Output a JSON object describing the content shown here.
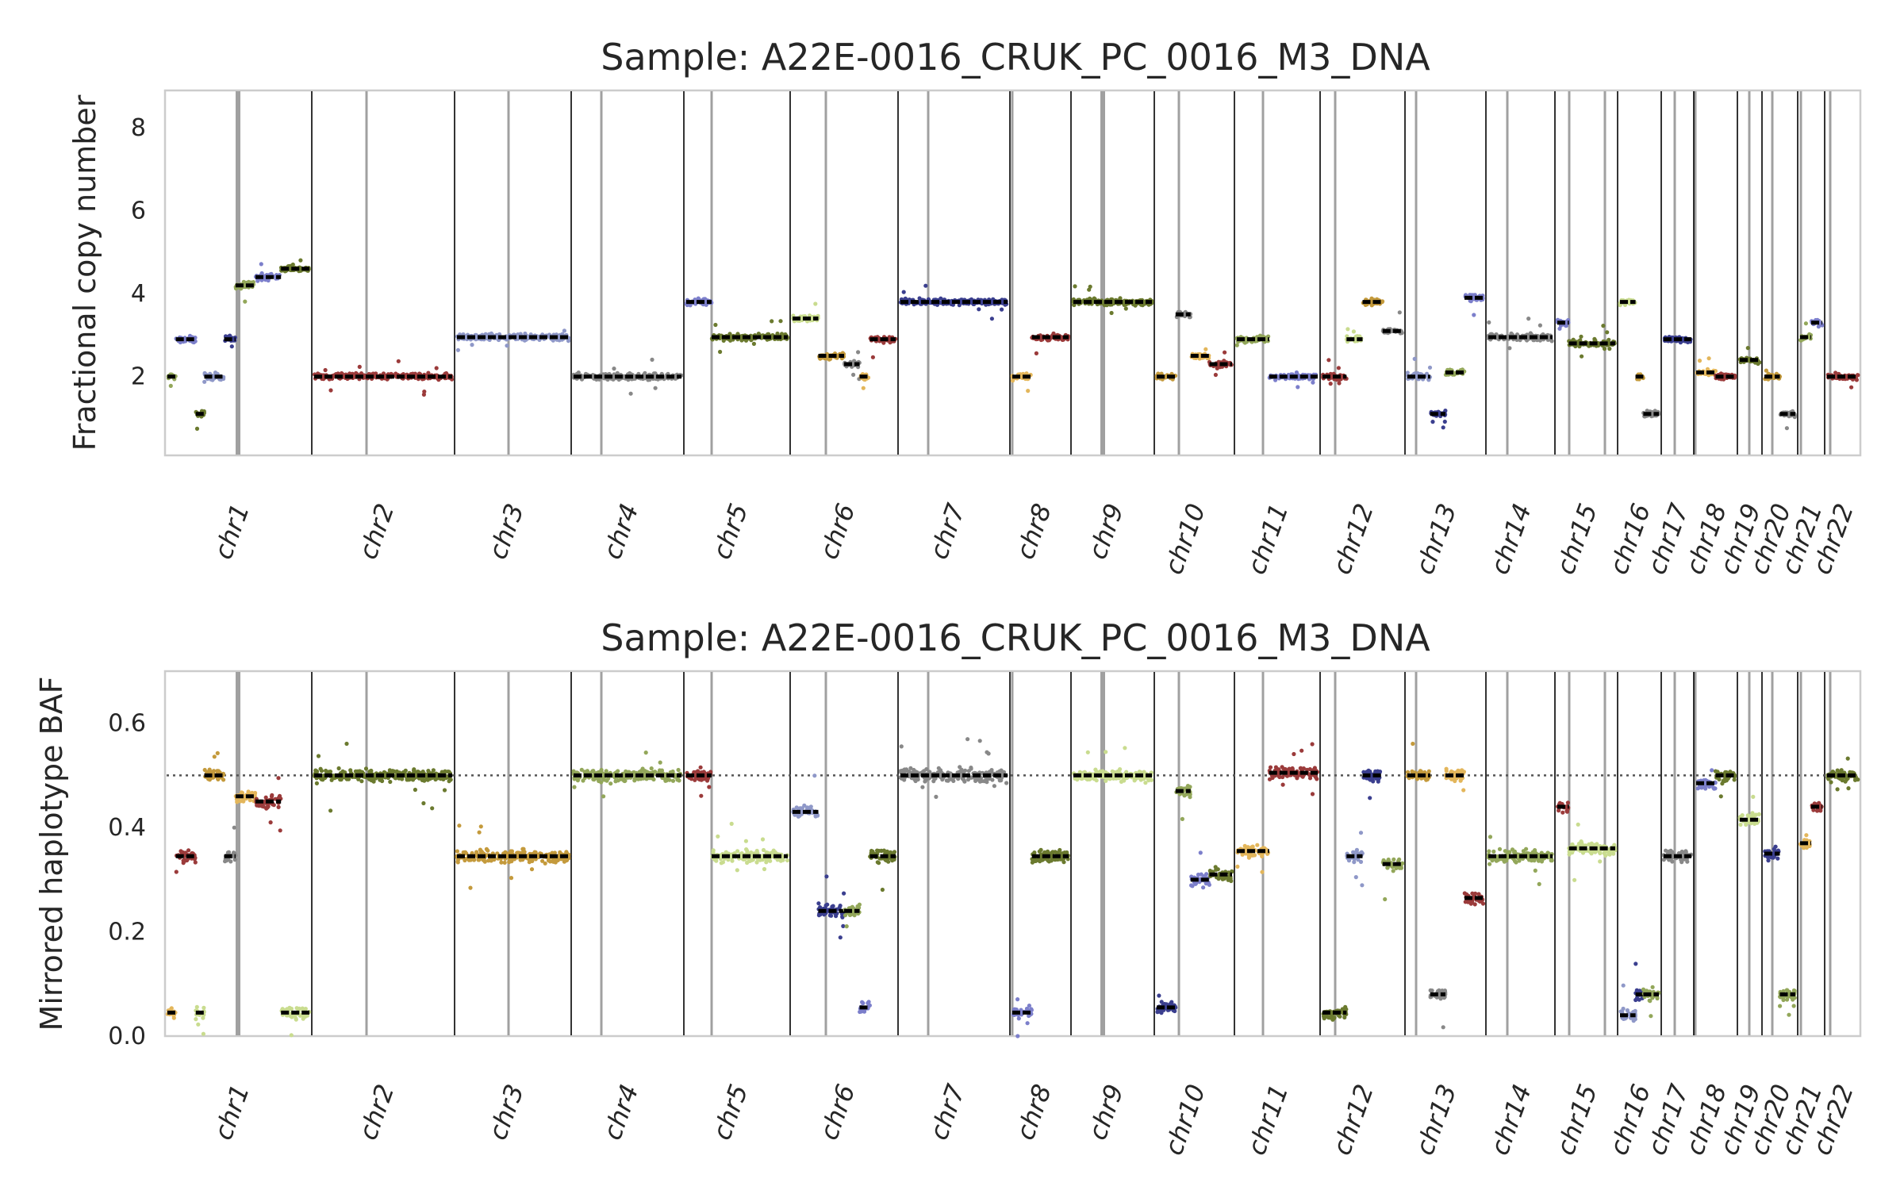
{
  "colors": {
    "palette": [
      "#93a75a",
      "#e3b65b",
      "#7c7fcb",
      "#9b3b3b",
      "#6b7a2f",
      "#c9dc8f",
      "#8f98c8",
      "#c49a3c",
      "#3b3f8f",
      "#888888"
    ],
    "segment": "#000000",
    "centromere": "#a0a0a0",
    "boundary": "#000000",
    "frame": "#cccccc",
    "reference_line": "#555555"
  },
  "chromosomes": [
    "chr1",
    "chr2",
    "chr3",
    "chr4",
    "chr5",
    "chr6",
    "chr7",
    "chr8",
    "chr9",
    "chr10",
    "chr11",
    "chr12",
    "chr13",
    "chr14",
    "chr15",
    "chr16",
    "chr17",
    "chr18",
    "chr19",
    "chr20",
    "chr21",
    "chr22"
  ],
  "chart_data": [
    {
      "type": "scatter",
      "title": "Sample: A22E-0016_CRUK_PC_0016_M3_DNA",
      "xlabel": "",
      "ylabel": "Fractional copy number",
      "ylim": [
        0.1,
        8.9
      ],
      "yticks": [
        2,
        4,
        6,
        8
      ],
      "grid": false,
      "legend": "none",
      "chromosome_segments": [
        {
          "chr": "chr1",
          "segments": [
            [
              0,
              0.06,
              2
            ],
            [
              0.06,
              0.2,
              2.9
            ],
            [
              0.2,
              0.26,
              1.1
            ],
            [
              0.26,
              0.4,
              2
            ],
            [
              0.4,
              0.48,
              2.9
            ],
            [
              0.48,
              0.62,
              4.2
            ],
            [
              0.62,
              0.8,
              4.4
            ],
            [
              0.8,
              1,
              4.6
            ]
          ]
        },
        {
          "chr": "chr2",
          "segments": [
            [
              0,
              1,
              2
            ]
          ]
        },
        {
          "chr": "chr3",
          "segments": [
            [
              0,
              1,
              2.95
            ]
          ]
        },
        {
          "chr": "chr4",
          "segments": [
            [
              0,
              1,
              2
            ]
          ]
        },
        {
          "chr": "chr5",
          "segments": [
            [
              0,
              0.25,
              3.8
            ],
            [
              0.25,
              1,
              2.95
            ]
          ]
        },
        {
          "chr": "chr6",
          "segments": [
            [
              0,
              0.25,
              3.4
            ],
            [
              0.25,
              0.5,
              2.5
            ],
            [
              0.5,
              0.65,
              2.3
            ],
            [
              0.65,
              0.75,
              2.0
            ],
            [
              0.75,
              1,
              2.9
            ]
          ]
        },
        {
          "chr": "chr7",
          "segments": [
            [
              0,
              1,
              3.8
            ]
          ]
        },
        {
          "chr": "chr8",
          "segments": [
            [
              0,
              0.35,
              2
            ],
            [
              0.35,
              1,
              2.95
            ]
          ]
        },
        {
          "chr": "chr9",
          "segments": [
            [
              0,
              1,
              3.8
            ]
          ]
        },
        {
          "chr": "chr10",
          "segments": [
            [
              0,
              0.25,
              2
            ],
            [
              0.25,
              0.45,
              3.5
            ],
            [
              0.45,
              0.7,
              2.5
            ],
            [
              0.7,
              1,
              2.3
            ]
          ]
        },
        {
          "chr": "chr11",
          "segments": [
            [
              0,
              0.4,
              2.9
            ],
            [
              0.4,
              1,
              2
            ]
          ]
        },
        {
          "chr": "chr12",
          "segments": [
            [
              0,
              0.3,
              2
            ],
            [
              0.3,
              0.5,
              2.9
            ],
            [
              0.5,
              0.75,
              3.8
            ],
            [
              0.75,
              1,
              3.1
            ]
          ]
        },
        {
          "chr": "chr13",
          "segments": [
            [
              0,
              0.3,
              2
            ],
            [
              0.3,
              0.5,
              1.1
            ],
            [
              0.5,
              0.75,
              2.1
            ],
            [
              0.75,
              1,
              3.9
            ]
          ]
        },
        {
          "chr": "chr14",
          "segments": [
            [
              0,
              1,
              2.95
            ]
          ]
        },
        {
          "chr": "chr15",
          "segments": [
            [
              0,
              0.2,
              3.3
            ],
            [
              0.2,
              1,
              2.8
            ]
          ]
        },
        {
          "chr": "chr16",
          "segments": [
            [
              0,
              0.4,
              3.8
            ],
            [
              0.4,
              0.6,
              2.0
            ],
            [
              0.6,
              1,
              1.1
            ]
          ]
        },
        {
          "chr": "chr17",
          "segments": [
            [
              0,
              1,
              2.9
            ]
          ]
        },
        {
          "chr": "chr18",
          "segments": [
            [
              0,
              0.5,
              2.1
            ],
            [
              0.5,
              1,
              2
            ]
          ]
        },
        {
          "chr": "chr19",
          "segments": [
            [
              0,
              1,
              2.4
            ]
          ]
        },
        {
          "chr": "chr20",
          "segments": [
            [
              0,
              0.5,
              2
            ],
            [
              0.5,
              1,
              1.1
            ]
          ]
        },
        {
          "chr": "chr21",
          "segments": [
            [
              0,
              0.5,
              2.95
            ],
            [
              0.5,
              1,
              3.3
            ]
          ]
        },
        {
          "chr": "chr22",
          "segments": [
            [
              0,
              1,
              2
            ]
          ]
        }
      ]
    },
    {
      "type": "scatter",
      "title": "Sample: A22E-0016_CRUK_PC_0016_M3_DNA",
      "xlabel": "",
      "ylabel": "Mirrored haplotype BAF",
      "ylim": [
        0,
        0.7
      ],
      "yticks": [
        0.0,
        0.2,
        0.4,
        0.6
      ],
      "reference_line": 0.5,
      "grid": false,
      "legend": "none",
      "chromosome_segments": [
        {
          "chr": "chr1",
          "segments": [
            [
              0,
              0.06,
              0.045
            ],
            [
              0.06,
              0.2,
              0.345
            ],
            [
              0.2,
              0.26,
              0.045
            ],
            [
              0.26,
              0.4,
              0.5
            ],
            [
              0.4,
              0.48,
              0.345
            ],
            [
              0.48,
              0.62,
              0.46
            ],
            [
              0.62,
              0.8,
              0.45
            ],
            [
              0.8,
              1,
              0.045
            ]
          ]
        },
        {
          "chr": "chr2",
          "segments": [
            [
              0,
              1,
              0.5
            ]
          ]
        },
        {
          "chr": "chr3",
          "segments": [
            [
              0,
              1,
              0.345
            ]
          ]
        },
        {
          "chr": "chr4",
          "segments": [
            [
              0,
              1,
              0.5
            ]
          ]
        },
        {
          "chr": "chr5",
          "segments": [
            [
              0,
              0.25,
              0.5
            ],
            [
              0.25,
              1,
              0.345
            ]
          ]
        },
        {
          "chr": "chr6",
          "segments": [
            [
              0,
              0.25,
              0.43
            ],
            [
              0.25,
              0.5,
              0.24
            ],
            [
              0.5,
              0.65,
              0.24
            ],
            [
              0.65,
              0.75,
              0.055
            ],
            [
              0.75,
              1,
              0.345
            ]
          ]
        },
        {
          "chr": "chr7",
          "segments": [
            [
              0,
              1,
              0.5
            ]
          ]
        },
        {
          "chr": "chr8",
          "segments": [
            [
              0,
              0.35,
              0.045
            ],
            [
              0.35,
              1,
              0.345
            ]
          ]
        },
        {
          "chr": "chr9",
          "segments": [
            [
              0,
              1,
              0.5
            ]
          ]
        },
        {
          "chr": "chr10",
          "segments": [
            [
              0,
              0.25,
              0.055
            ],
            [
              0.25,
              0.45,
              0.47
            ],
            [
              0.45,
              0.7,
              0.3
            ],
            [
              0.7,
              1,
              0.31
            ]
          ]
        },
        {
          "chr": "chr11",
          "segments": [
            [
              0,
              0.4,
              0.355
            ],
            [
              0.4,
              1,
              0.505
            ]
          ]
        },
        {
          "chr": "chr12",
          "segments": [
            [
              0,
              0.3,
              0.045
            ],
            [
              0.3,
              0.5,
              0.345
            ],
            [
              0.5,
              0.75,
              0.5
            ],
            [
              0.75,
              1,
              0.33
            ]
          ]
        },
        {
          "chr": "chr13",
          "segments": [
            [
              0,
              0.3,
              0.5
            ],
            [
              0.3,
              0.5,
              0.08
            ],
            [
              0.5,
              0.75,
              0.5
            ],
            [
              0.75,
              1,
              0.265
            ]
          ]
        },
        {
          "chr": "chr14",
          "segments": [
            [
              0,
              1,
              0.345
            ]
          ]
        },
        {
          "chr": "chr15",
          "segments": [
            [
              0,
              0.2,
              0.44
            ],
            [
              0.2,
              1,
              0.36
            ]
          ]
        },
        {
          "chr": "chr16",
          "segments": [
            [
              0,
              0.4,
              0.04
            ],
            [
              0.4,
              0.6,
              0.08
            ],
            [
              0.6,
              1,
              0.08
            ]
          ]
        },
        {
          "chr": "chr17",
          "segments": [
            [
              0,
              1,
              0.345
            ]
          ]
        },
        {
          "chr": "chr18",
          "segments": [
            [
              0,
              0.5,
              0.485
            ],
            [
              0.5,
              1,
              0.5
            ]
          ]
        },
        {
          "chr": "chr19",
          "segments": [
            [
              0,
              1,
              0.415
            ]
          ]
        },
        {
          "chr": "chr20",
          "segments": [
            [
              0,
              0.5,
              0.35
            ],
            [
              0.5,
              1,
              0.08
            ]
          ]
        },
        {
          "chr": "chr21",
          "segments": [
            [
              0,
              0.5,
              0.37
            ],
            [
              0.5,
              1,
              0.44
            ]
          ]
        },
        {
          "chr": "chr22",
          "segments": [
            [
              0,
              1,
              0.5
            ]
          ]
        }
      ]
    }
  ]
}
